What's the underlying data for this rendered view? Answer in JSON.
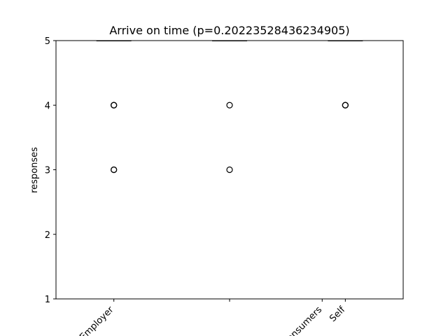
{
  "chart_data": {
    "type": "box",
    "title": "Arrive on time (p=0.20223528436234905)",
    "xlabel": "",
    "ylabel": "responses",
    "ylim": [
      1,
      5
    ],
    "yticks": [
      1,
      2,
      3,
      4,
      5
    ],
    "grid": false,
    "categories": [
      "Employer",
      "",
      "Consumers",
      "Self"
    ],
    "category_positions": [
      1,
      2,
      2.8,
      3
    ],
    "boxes": [
      {
        "position": 1,
        "median": 5,
        "q1": 5,
        "q3": 5,
        "whisker_low": 5,
        "whisker_high": 5,
        "outliers": [
          4,
          4,
          4,
          3,
          3
        ]
      },
      {
        "position": 2,
        "median": 5,
        "q1": 5,
        "q3": 5,
        "whisker_low": 5,
        "whisker_high": 5,
        "outliers": [
          4,
          3
        ]
      },
      {
        "position": 3,
        "median": 5,
        "q1": 5,
        "q3": 5,
        "whisker_low": 5,
        "whisker_high": 5,
        "outliers": [
          4,
          4,
          4
        ]
      }
    ]
  }
}
